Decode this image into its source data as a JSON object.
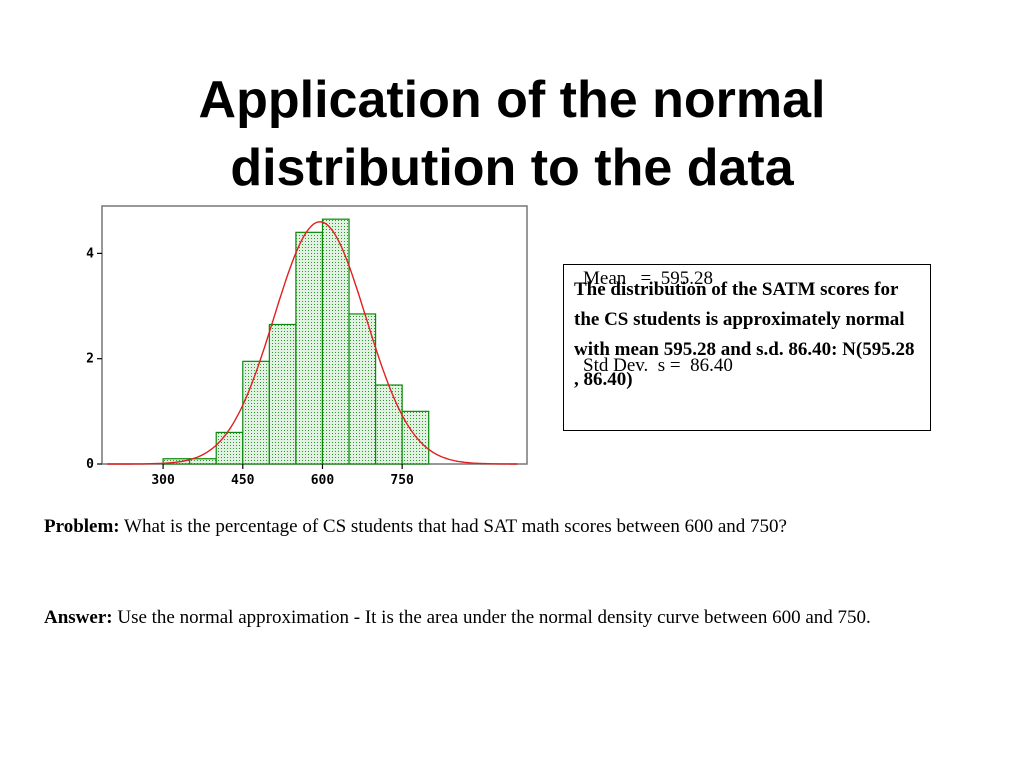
{
  "slide": {
    "title_line1": "Application of the normal",
    "title_line2": "distribution to the data"
  },
  "stats": {
    "mean_line": "Mean   =  595.28",
    "sd_line": "Std Dev.  s =  86.40"
  },
  "summary": {
    "text": "The distribution of the SATM scores for the CS students is approximately normal with mean 595.28 and s.d. 86.40: N(595.28 , 86.40)"
  },
  "problem": {
    "label": "Problem:",
    "text": " What is the percentage of CS students that had SAT math scores between 600 and  750?"
  },
  "answer": {
    "label": "Answer:",
    "text": " Use the normal approximation  - It is the area under the normal density curve between 600 and 750."
  },
  "chart_data": {
    "type": "bar",
    "bin_edges": [
      300,
      350,
      400,
      450,
      500,
      550,
      600,
      650,
      700,
      750
    ],
    "values": [
      0.1,
      0.1,
      0.6,
      1.95,
      2.65,
      4.4,
      4.65,
      2.85,
      1.5,
      1.0
    ],
    "x_ticks": [
      300,
      450,
      600,
      750
    ],
    "x_tick_labels": [
      "300",
      "450",
      "600",
      "750"
    ],
    "y_ticks": [
      0,
      2,
      4
    ],
    "y_tick_labels": [
      "0",
      "2",
      "4"
    ],
    "xlim": [
      185,
      985
    ],
    "ylim": [
      0,
      4.9
    ],
    "overlay_curve": {
      "type": "normal",
      "mean": 595.28,
      "sd": 86.4,
      "peak": 4.6
    },
    "colors": {
      "bar_fill": "#d6ecd6",
      "bar_stroke": "#0a8a0a",
      "curve": "#e02020"
    }
  }
}
